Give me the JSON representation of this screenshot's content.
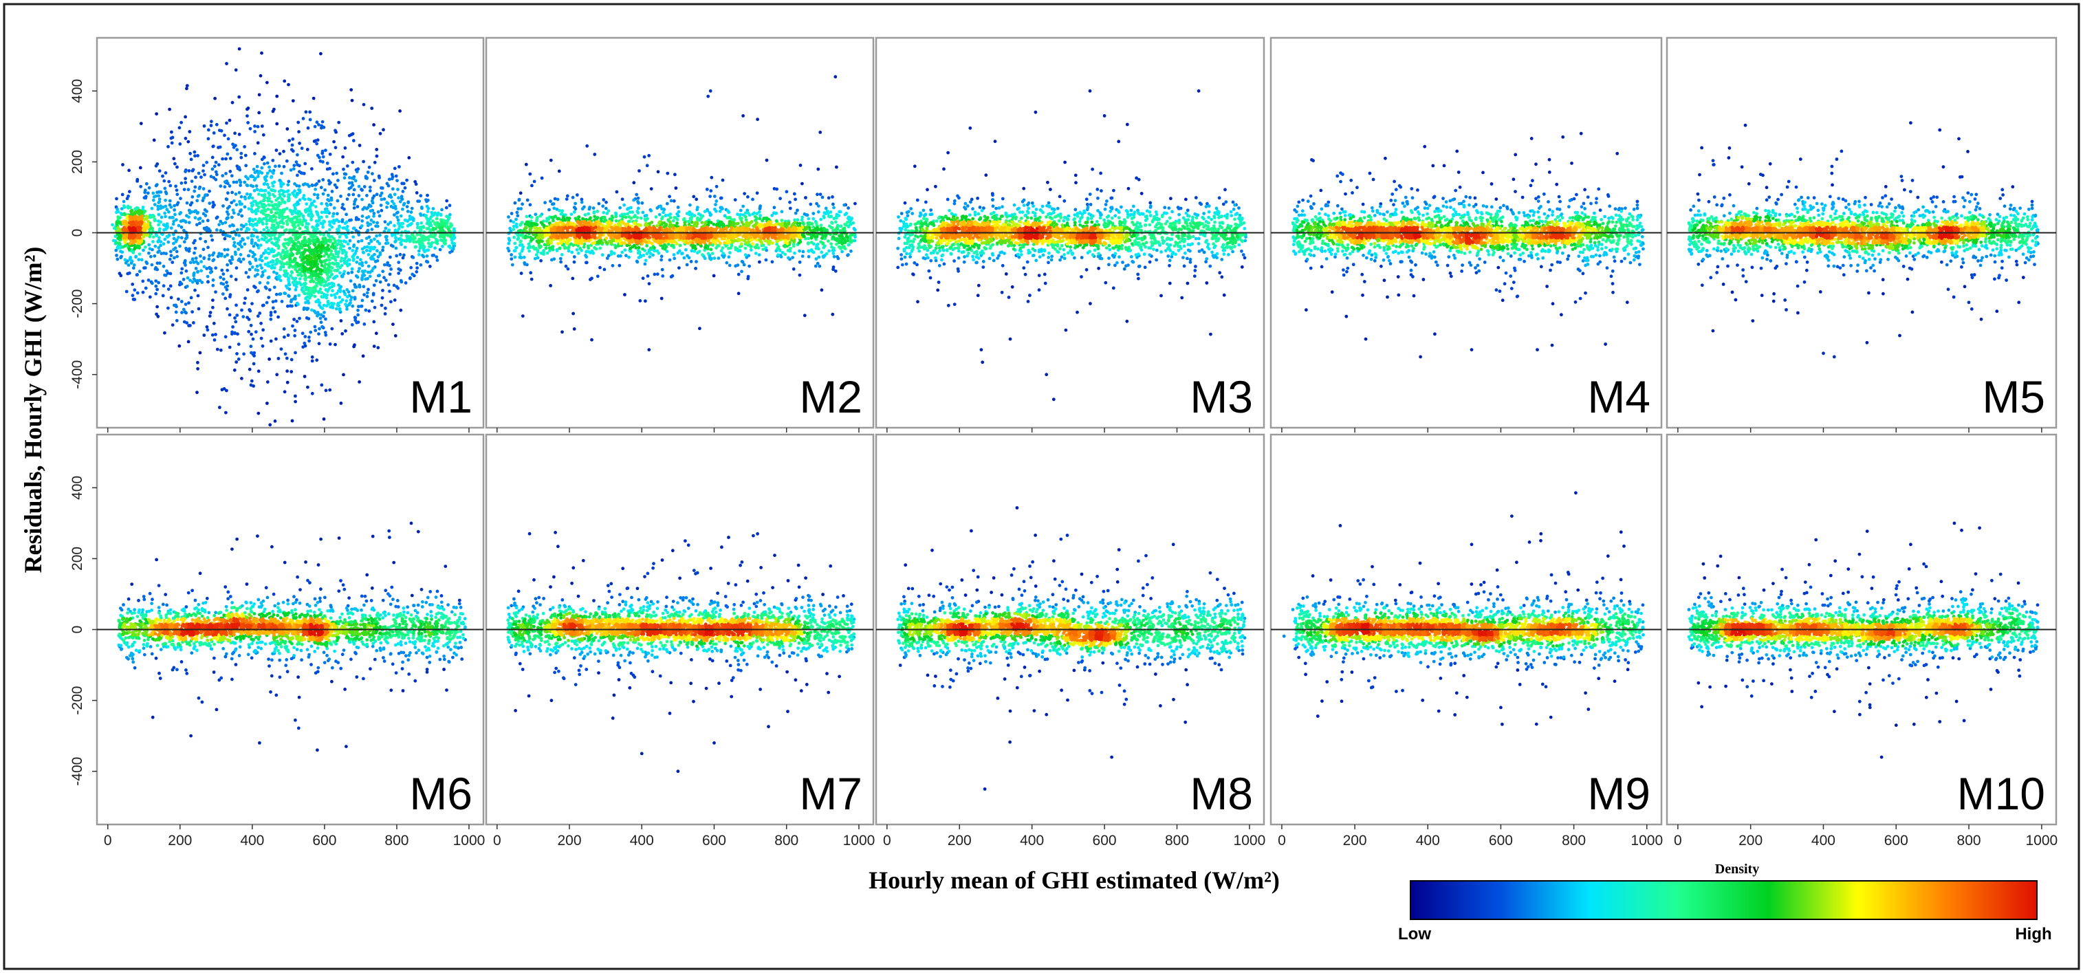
{
  "chart_data": {
    "type": "scatter",
    "figure_style": "residual density scatter, small multiples 2x5",
    "xlabel": "Hourly mean of GHI estimated (W/m²)",
    "ylabel": "Residuals, Hourly GHI (W/m²)",
    "xlim": [
      -30,
      1040
    ],
    "ylim": [
      -550,
      550
    ],
    "x_ticks": [
      0,
      200,
      400,
      600,
      800,
      1000
    ],
    "y_ticks": [
      -400,
      -200,
      0,
      200,
      400
    ],
    "reference_line_y": 0,
    "colorbar": {
      "title": "Density",
      "low_label": "Low",
      "high_label": "High",
      "colors": [
        "#00008f",
        "#0050e0",
        "#00e5ff",
        "#20ff90",
        "#00d020",
        "#ffff00",
        "#ff8000",
        "#e01000"
      ]
    },
    "panels": [
      {
        "label": "M1",
        "shape": "wide",
        "hotspots": [
          [
            75,
            10
          ],
          [
            450,
            55
          ],
          [
            555,
            -35
          ],
          [
            585,
            -115
          ]
        ],
        "spread": 95,
        "x_range": [
          20,
          960
        ]
      },
      {
        "label": "M2",
        "shape": "band",
        "hotspots": [
          [
            220,
            5
          ],
          [
            380,
            -5
          ],
          [
            580,
            -5
          ],
          [
            760,
            0
          ]
        ],
        "spread": 30,
        "outliers": [
          [
            590,
            400
          ],
          [
            935,
            440
          ],
          [
            680,
            330
          ],
          [
            720,
            320
          ],
          [
            420,
            -330
          ],
          [
            560,
            -270
          ],
          [
            180,
            -280
          ]
        ]
      },
      {
        "label": "M3",
        "shape": "band",
        "hotspots": [
          [
            210,
            5
          ],
          [
            380,
            -5
          ],
          [
            560,
            -10
          ]
        ],
        "spread": 30,
        "outliers": [
          [
            410,
            340
          ],
          [
            560,
            400
          ],
          [
            860,
            400
          ],
          [
            600,
            330
          ],
          [
            440,
            -400
          ],
          [
            460,
            -470
          ],
          [
            260,
            -330
          ],
          [
            340,
            -300
          ]
        ]
      },
      {
        "label": "M4",
        "shape": "band",
        "hotspots": [
          [
            200,
            5
          ],
          [
            350,
            0
          ],
          [
            530,
            -15
          ],
          [
            750,
            -5
          ]
        ],
        "spread": 30,
        "outliers": [
          [
            820,
            280
          ],
          [
            770,
            270
          ],
          [
            480,
            230
          ],
          [
            380,
            -350
          ],
          [
            520,
            -330
          ],
          [
            230,
            -300
          ],
          [
            700,
            -330
          ]
        ]
      },
      {
        "label": "M5",
        "shape": "band",
        "hotspots": [
          [
            200,
            10
          ],
          [
            380,
            0
          ],
          [
            560,
            -10
          ],
          [
            750,
            0
          ]
        ],
        "spread": 30,
        "outliers": [
          [
            640,
            310
          ],
          [
            720,
            290
          ],
          [
            450,
            230
          ],
          [
            400,
            -340
          ],
          [
            430,
            -350
          ],
          [
            520,
            -310
          ],
          [
            610,
            -290
          ]
        ]
      },
      {
        "label": "M6",
        "shape": "band",
        "hotspots": [
          [
            210,
            5
          ],
          [
            380,
            10
          ],
          [
            570,
            0
          ]
        ],
        "spread": 28,
        "outliers": [
          [
            840,
            300
          ],
          [
            780,
            260
          ],
          [
            590,
            255
          ],
          [
            230,
            -300
          ],
          [
            580,
            -340
          ],
          [
            660,
            -330
          ],
          [
            420,
            -320
          ]
        ]
      },
      {
        "label": "M7",
        "shape": "band",
        "hotspots": [
          [
            220,
            10
          ],
          [
            400,
            0
          ],
          [
            560,
            0
          ],
          [
            720,
            0
          ]
        ],
        "spread": 28,
        "outliers": [
          [
            720,
            270
          ],
          [
            640,
            260
          ],
          [
            520,
            250
          ],
          [
            400,
            -350
          ],
          [
            500,
            -400
          ],
          [
            600,
            -320
          ],
          [
            320,
            -250
          ]
        ]
      },
      {
        "label": "M8",
        "shape": "band",
        "hotspots": [
          [
            200,
            0
          ],
          [
            380,
            10
          ],
          [
            570,
            -20
          ]
        ],
        "spread": 30,
        "outliers": [
          [
            480,
            255
          ],
          [
            790,
            240
          ],
          [
            640,
            225
          ],
          [
            270,
            -450
          ],
          [
            620,
            -360
          ],
          [
            440,
            -240
          ],
          [
            340,
            -230
          ]
        ]
      },
      {
        "label": "M9",
        "shape": "band",
        "hotspots": [
          [
            210,
            5
          ],
          [
            380,
            0
          ],
          [
            550,
            -10
          ],
          [
            760,
            0
          ]
        ],
        "spread": 28,
        "outliers": [
          [
            630,
            320
          ],
          [
            710,
            270
          ],
          [
            520,
            240
          ],
          [
            430,
            -230
          ],
          [
            840,
            -225
          ],
          [
            600,
            -220
          ]
        ]
      },
      {
        "label": "M10",
        "shape": "band",
        "hotspots": [
          [
            200,
            0
          ],
          [
            360,
            0
          ],
          [
            560,
            -10
          ],
          [
            760,
            5
          ]
        ],
        "spread": 28,
        "outliers": [
          [
            760,
            300
          ],
          [
            780,
            280
          ],
          [
            640,
            240
          ],
          [
            560,
            -360
          ],
          [
            600,
            -270
          ],
          [
            720,
            -260
          ],
          [
            500,
            -240
          ]
        ]
      }
    ]
  }
}
